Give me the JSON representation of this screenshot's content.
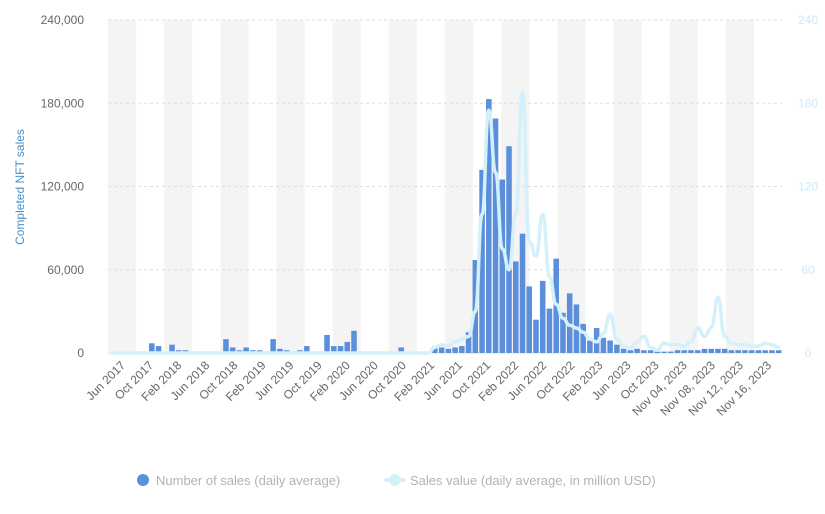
{
  "chart_data": {
    "type": "bar",
    "ylabel": "Completed NFT sales",
    "y_ticks": [
      "0",
      "60,000",
      "120,000",
      "180,000",
      "240,000"
    ],
    "y_tick_values": [
      0,
      60000,
      120000,
      180000,
      240000
    ],
    "ylim": [
      0,
      240000
    ],
    "y2_ticks": [
      "0",
      "60",
      "120",
      "180",
      "240"
    ],
    "y2_tick_values": [
      0,
      60,
      120,
      180,
      240
    ],
    "y2lim": [
      0,
      240
    ],
    "x_tick_labels": [
      "Jun 2017",
      "Oct 2017",
      "Feb 2018",
      "Jun 2018",
      "Oct 2018",
      "Feb 2019",
      "Jun 2019",
      "Oct 2019",
      "Feb 2020",
      "Jun 2020",
      "Oct 2020",
      "Feb 2021",
      "Jun 2021",
      "Oct 2021",
      "Feb 2022",
      "Jun 2022",
      "Oct 2022",
      "Feb 2023",
      "Jun 2023",
      "Oct 2023",
      "Nov 04, 2023",
      "Nov 08, 2023",
      "Nov 12, 2023",
      "Nov 16, 2023"
    ],
    "grid": true,
    "legend_position": "bottom",
    "colors": {
      "bars": "#5b8fdb",
      "line": "#d4f0fb",
      "band": "#f4f4f4"
    },
    "series": [
      {
        "name": "Number of sales (daily average)",
        "type": "bar",
        "axis": "left",
        "values": [
          0,
          0,
          0,
          0,
          0,
          0,
          7000,
          5000,
          0,
          6000,
          2000,
          2000,
          1000,
          0,
          0,
          0,
          0,
          10000,
          4000,
          2000,
          4000,
          2000,
          2000,
          0,
          10000,
          3000,
          2000,
          0,
          2000,
          5000,
          0,
          0,
          13000,
          5000,
          5000,
          8000,
          16000,
          0,
          0,
          1000,
          0,
          0,
          0,
          4000,
          0,
          0,
          0,
          0,
          5000,
          4000,
          3000,
          4000,
          5000,
          15000,
          67000,
          132000,
          183000,
          169000,
          125000,
          149000,
          66000,
          86000,
          48000,
          24000,
          52000,
          32000,
          68000,
          29000,
          43000,
          35000,
          21000,
          9000,
          18000,
          11000,
          9000,
          6000,
          3000,
          2000,
          3000,
          2000,
          2000,
          1000,
          1000,
          1000,
          2000,
          2000,
          2000,
          2000,
          3000,
          3000,
          3000,
          3000,
          2000,
          2000,
          2000,
          2000,
          2000,
          2000,
          2000,
          2000
        ]
      },
      {
        "name": "Sales value (daily average, in million USD)",
        "type": "line",
        "axis": "right",
        "values": [
          0,
          0,
          0,
          0,
          0,
          0,
          0,
          0,
          0,
          0,
          0,
          0,
          0,
          0,
          0,
          0,
          0,
          0,
          0,
          0,
          0,
          0,
          0,
          0,
          0,
          0,
          0,
          0,
          0,
          0,
          0,
          0,
          0,
          0,
          0,
          0,
          0,
          0,
          0,
          0,
          0,
          0,
          0,
          0,
          0,
          0,
          0,
          0,
          4,
          6,
          5,
          8,
          10,
          12,
          30,
          100,
          175,
          130,
          75,
          60,
          100,
          188,
          80,
          70,
          100,
          55,
          35,
          25,
          20,
          18,
          15,
          10,
          8,
          14,
          28,
          10,
          5,
          4,
          8,
          12,
          4,
          2,
          7,
          6,
          6,
          5,
          8,
          18,
          12,
          18,
          40,
          12,
          7,
          6,
          6,
          5,
          5,
          7,
          6,
          4
        ]
      }
    ]
  }
}
